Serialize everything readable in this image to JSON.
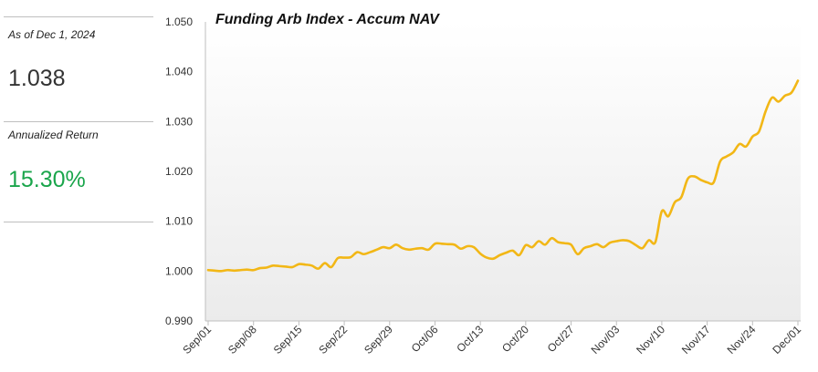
{
  "summary": {
    "date_label": "As of Dec 1, 2024",
    "nav_value": "1.038",
    "return_label": "Annualized Return",
    "return_value": "15.30%",
    "return_color": "#1aa54b"
  },
  "chart_data": {
    "type": "line",
    "title": "Funding Arb Index - Accum NAV",
    "xlabel": "",
    "ylabel": "",
    "ylim": [
      0.99,
      1.05
    ],
    "yticks": [
      "1.050",
      "1.040",
      "1.030",
      "1.020",
      "1.010",
      "1.000",
      "0.990"
    ],
    "xticks": [
      "Sep/01",
      "Sep/08",
      "Sep/15",
      "Sep/22",
      "Sep/29",
      "Oct/06",
      "Oct/13",
      "Oct/20",
      "Oct/27",
      "Nov/03",
      "Nov/10",
      "Nov/17",
      "Nov/24",
      "Dec/01"
    ],
    "line_color": "#f2b716",
    "grid": false,
    "series": [
      {
        "x": [
          0,
          1,
          2,
          3,
          4,
          5,
          6,
          7,
          8,
          9,
          10,
          11,
          12,
          13,
          14,
          15,
          16,
          17,
          18,
          19,
          20,
          21,
          22,
          23,
          24,
          25,
          26,
          27,
          28,
          29,
          30,
          31,
          32,
          33,
          34,
          35,
          36,
          37,
          38,
          39,
          40,
          41,
          42,
          43,
          44,
          45,
          46,
          47,
          48,
          49,
          50,
          51,
          52,
          53,
          54,
          55,
          56,
          57,
          58,
          59,
          60,
          61,
          62,
          63,
          64,
          65,
          66,
          67,
          68,
          69,
          70,
          71,
          72,
          73,
          74,
          75,
          76,
          77,
          78,
          79,
          80,
          81,
          82,
          83,
          84,
          85,
          86,
          87,
          88,
          89,
          90,
          91
        ],
        "values": [
          1.0002,
          1.0001,
          1.0,
          1.0002,
          1.0001,
          1.0002,
          1.0003,
          1.0002,
          1.0006,
          1.0007,
          1.0011,
          1.001,
          1.0009,
          1.0008,
          1.0014,
          1.0013,
          1.0011,
          1.0005,
          1.0016,
          1.0008,
          1.0026,
          1.0027,
          1.0028,
          1.0038,
          1.0034,
          1.0038,
          1.0043,
          1.0048,
          1.0046,
          1.0053,
          1.0046,
          1.0043,
          1.0045,
          1.0046,
          1.0043,
          1.0055,
          1.0055,
          1.0054,
          1.0053,
          1.0045,
          1.005,
          1.0048,
          1.0035,
          1.0027,
          1.0025,
          1.0032,
          1.0037,
          1.0041,
          1.0032,
          1.0052,
          1.0048,
          1.006,
          1.0053,
          1.0066,
          1.0058,
          1.0056,
          1.0053,
          1.0034,
          1.0046,
          1.005,
          1.0054,
          1.0048,
          1.0057,
          1.006,
          1.0062,
          1.006,
          1.0052,
          1.0046,
          1.0062,
          1.0058,
          1.012,
          1.011,
          1.0138,
          1.0148,
          1.0185,
          1.019,
          1.0183,
          1.0178,
          1.0178,
          1.022,
          1.023,
          1.0238,
          1.0255,
          1.025,
          1.027,
          1.028,
          1.032,
          1.0348,
          1.034,
          1.0352,
          1.0358,
          1.0382
        ]
      }
    ]
  }
}
